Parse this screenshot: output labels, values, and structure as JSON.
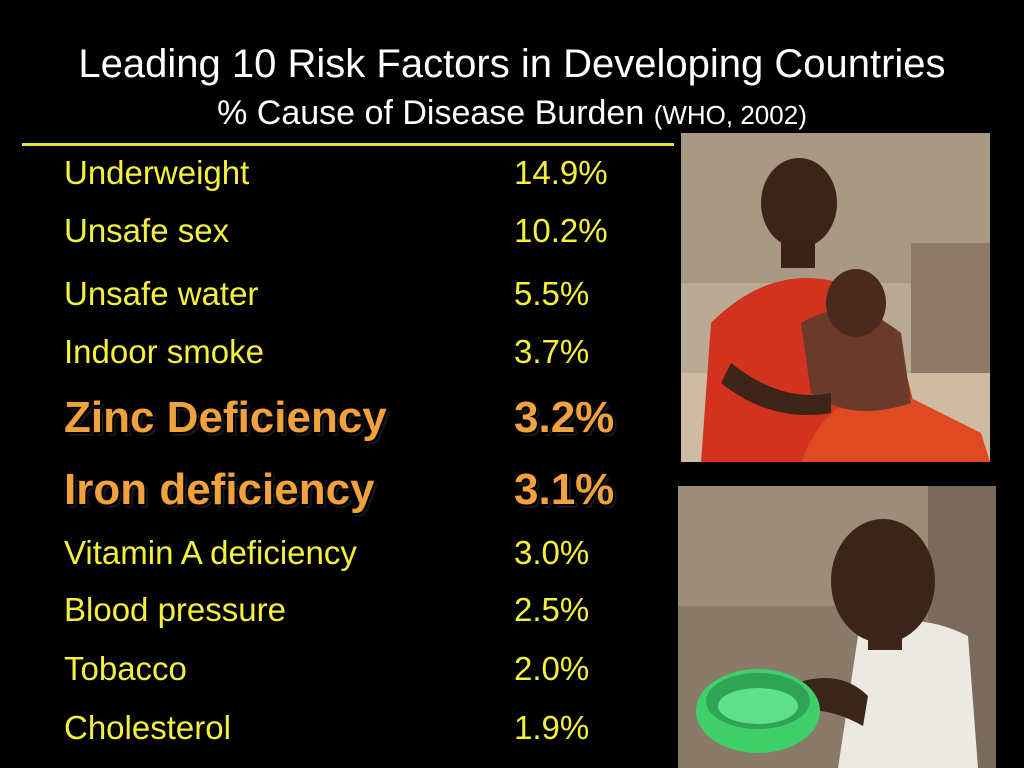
{
  "title": {
    "line1": "Leading 10 Risk Factors in Developing Countries",
    "line2_main": "% Cause of Disease Burden",
    "line2_source": "(WHO, 2002)"
  },
  "risk_factors": [
    {
      "name": "Underweight",
      "value": "14.9%",
      "emphasized": false
    },
    {
      "name": "Unsafe sex",
      "value": "10.2%",
      "emphasized": false
    },
    {
      "name": "Unsafe water",
      "value": "5.5%",
      "emphasized": false
    },
    {
      "name": "Indoor smoke",
      "value": "3.7%",
      "emphasized": false
    },
    {
      "name": "Zinc Deficiency",
      "value": "3.2%",
      "emphasized": true
    },
    {
      "name": "Iron deficiency",
      "value": "3.1%",
      "emphasized": true
    },
    {
      "name": "Vitamin A deficiency",
      "value": "3.0%",
      "emphasized": false
    },
    {
      "name": "Blood pressure",
      "value": "2.5%",
      "emphasized": false
    },
    {
      "name": "Tobacco",
      "value": "2.0%",
      "emphasized": false
    },
    {
      "name": "Cholesterol",
      "value": "1.9%",
      "emphasized": false
    }
  ],
  "colors": {
    "background": "#000000",
    "title": "#ffffff",
    "list_text": "#f5f03a",
    "emphasis_text": "#f2a23c",
    "rule": "#e8e23c"
  },
  "photos": [
    {
      "icon": "photo-children-seated-icon"
    },
    {
      "icon": "photo-child-with-bowl-icon"
    }
  ]
}
